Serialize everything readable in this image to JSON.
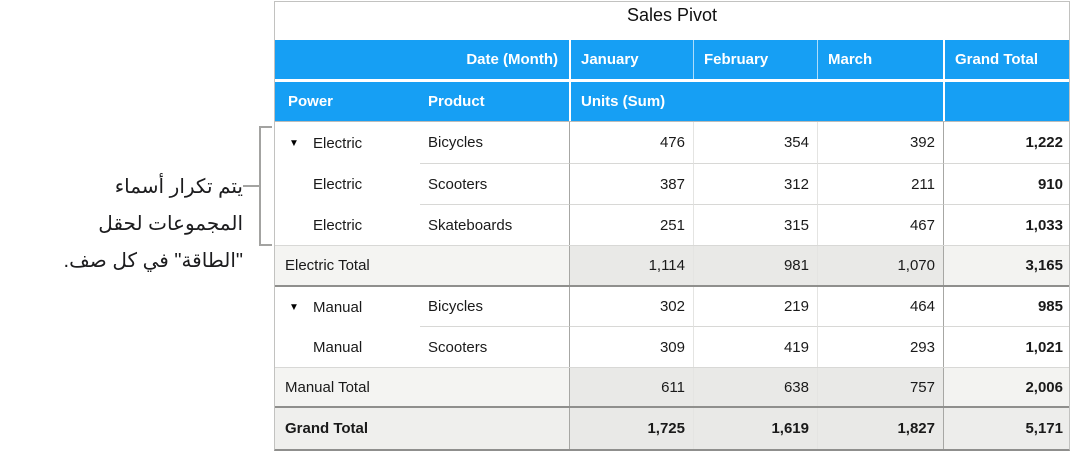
{
  "colors": {
    "header_blue": "#169ff4",
    "header_text": "#ffffff",
    "subtotal_label_bg": "#f4f4f2",
    "subtotal_value_bg": "#e9e9e7",
    "grand_row_bg": "#eaeae8",
    "group_boundary_line": "#8f8f8d",
    "callout_line": "#a3a3a1"
  },
  "callout": {
    "lines": [
      "يتم تكرار أسماء",
      "المجموعات لحقل",
      "\"الطاقة\" في كل صف."
    ]
  },
  "table": {
    "title": "Sales Pivot",
    "header": {
      "date_month": "Date (Month)",
      "months": [
        "January",
        "February",
        "March"
      ],
      "grand_total": "Grand Total",
      "power": "Power",
      "product": "Product",
      "units": "Units (Sum)"
    },
    "rows": [
      {
        "disclosure": "▼",
        "power": "Electric",
        "product": "Bicycles",
        "values": [
          "476",
          "354",
          "392"
        ],
        "total": "1,222"
      },
      {
        "disclosure": "",
        "power": "Electric",
        "product": "Scooters",
        "values": [
          "387",
          "312",
          "211"
        ],
        "total": "910"
      },
      {
        "disclosure": "",
        "power": "Electric",
        "product": "Skateboards",
        "values": [
          "251",
          "315",
          "467"
        ],
        "total": "1,033"
      },
      {
        "label": "Electric Total",
        "values": [
          "1,114",
          "981",
          "1,070"
        ],
        "total": "3,165"
      },
      {
        "disclosure": "▼",
        "power": "Manual",
        "product": "Bicycles",
        "values": [
          "302",
          "219",
          "464"
        ],
        "total": "985"
      },
      {
        "disclosure": "",
        "power": "Manual",
        "product": "Scooters",
        "values": [
          "309",
          "419",
          "293"
        ],
        "total": "1,021"
      },
      {
        "label": "Manual Total",
        "values": [
          "611",
          "638",
          "757"
        ],
        "total": "2,006"
      },
      {
        "label": "Grand Total",
        "values": [
          "1,725",
          "1,619",
          "1,827"
        ],
        "total": "5,171"
      }
    ]
  }
}
